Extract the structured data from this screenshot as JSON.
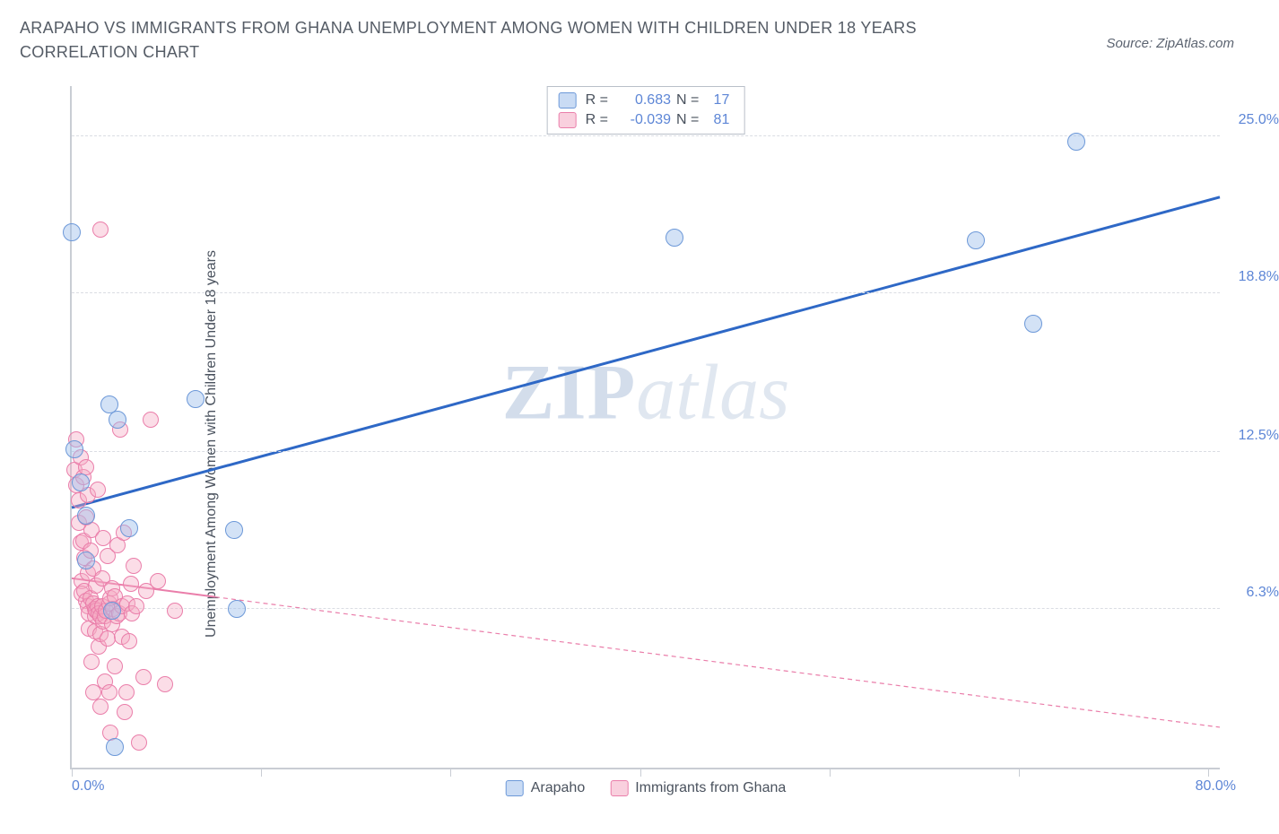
{
  "title": "ARAPAHO VS IMMIGRANTS FROM GHANA UNEMPLOYMENT AMONG WOMEN WITH CHILDREN UNDER 18 YEARS CORRELATION CHART",
  "source_label": "Source: ZipAtlas.com",
  "watermark_a": "ZIP",
  "watermark_b": "atlas",
  "y_axis_label": "Unemployment Among Women with Children Under 18 years",
  "chart": {
    "type": "scatter",
    "xlim": [
      0,
      80
    ],
    "ylim": [
      0,
      27
    ],
    "x_min_label": "0.0%",
    "x_max_label": "80.0%",
    "x_tick_positions_pct": [
      0,
      16.5,
      33,
      49.5,
      66,
      82.5,
      99
    ],
    "y_ticks": [
      {
        "value": 25.0,
        "label": "25.0%"
      },
      {
        "value": 18.8,
        "label": "18.8%"
      },
      {
        "value": 12.5,
        "label": "12.5%"
      },
      {
        "value": 6.3,
        "label": "6.3%"
      }
    ],
    "gridline_color": "#dadde3",
    "axis_color": "#c9cdd4",
    "background_color": "#ffffff",
    "y_tick_label_color": "#5d86d6",
    "series": {
      "arapaho": {
        "label": "Arapaho",
        "R_label": "R =",
        "R_value": "0.683",
        "N_label": "N =",
        "N_value": "17",
        "color_fill": "rgba(157,190,235,0.45)",
        "color_stroke": "#6c98d8",
        "trend_color": "#2e68c6",
        "trend_width": 3,
        "trend_dash": "none",
        "trend_y_at_x0": 10.3,
        "trend_y_at_xmax": 22.6,
        "points": [
          {
            "x": 0.0,
            "y": 21.2
          },
          {
            "x": 0.2,
            "y": 12.6
          },
          {
            "x": 0.6,
            "y": 11.3
          },
          {
            "x": 1.0,
            "y": 10.0
          },
          {
            "x": 1.0,
            "y": 8.2
          },
          {
            "x": 2.6,
            "y": 14.4
          },
          {
            "x": 3.2,
            "y": 13.8
          },
          {
            "x": 2.8,
            "y": 6.2
          },
          {
            "x": 4.0,
            "y": 9.5
          },
          {
            "x": 3.0,
            "y": 0.8
          },
          {
            "x": 8.6,
            "y": 14.6
          },
          {
            "x": 11.5,
            "y": 6.3
          },
          {
            "x": 11.3,
            "y": 9.4
          },
          {
            "x": 42.0,
            "y": 21.0
          },
          {
            "x": 63.0,
            "y": 20.9
          },
          {
            "x": 67.0,
            "y": 17.6
          },
          {
            "x": 70.0,
            "y": 24.8
          }
        ]
      },
      "ghana": {
        "label": "Immigrants from Ghana",
        "R_label": "R =",
        "R_value": "-0.039",
        "N_label": "N =",
        "N_value": "81",
        "color_fill": "rgba(244,170,195,0.40)",
        "color_stroke": "#ea7eaa",
        "trend_color": "#ea7eaa",
        "trend_width": 2,
        "trend_solid_until_x": 10,
        "trend_y_at_x0": 7.5,
        "trend_y_at_xmax": 1.6,
        "points": [
          {
            "x": 0.2,
            "y": 11.8
          },
          {
            "x": 0.3,
            "y": 11.2
          },
          {
            "x": 0.3,
            "y": 13.0
          },
          {
            "x": 0.5,
            "y": 10.6
          },
          {
            "x": 0.5,
            "y": 9.7
          },
          {
            "x": 0.6,
            "y": 12.3
          },
          {
            "x": 0.6,
            "y": 8.9
          },
          {
            "x": 0.7,
            "y": 7.4
          },
          {
            "x": 0.7,
            "y": 6.9
          },
          {
            "x": 0.8,
            "y": 11.5
          },
          {
            "x": 0.8,
            "y": 9.0
          },
          {
            "x": 0.9,
            "y": 8.3
          },
          {
            "x": 0.9,
            "y": 7.0
          },
          {
            "x": 1.0,
            "y": 6.6
          },
          {
            "x": 1.0,
            "y": 9.9
          },
          {
            "x": 1.0,
            "y": 11.9
          },
          {
            "x": 1.1,
            "y": 6.4
          },
          {
            "x": 1.1,
            "y": 7.7
          },
          {
            "x": 1.1,
            "y": 10.8
          },
          {
            "x": 1.2,
            "y": 5.5
          },
          {
            "x": 1.2,
            "y": 6.1
          },
          {
            "x": 1.3,
            "y": 8.6
          },
          {
            "x": 1.3,
            "y": 6.7
          },
          {
            "x": 1.4,
            "y": 4.2
          },
          {
            "x": 1.4,
            "y": 9.4
          },
          {
            "x": 1.5,
            "y": 3.0
          },
          {
            "x": 1.5,
            "y": 6.5
          },
          {
            "x": 1.5,
            "y": 7.9
          },
          {
            "x": 1.6,
            "y": 6.3
          },
          {
            "x": 1.6,
            "y": 6.0
          },
          {
            "x": 1.6,
            "y": 5.4
          },
          {
            "x": 1.7,
            "y": 6.2
          },
          {
            "x": 1.7,
            "y": 7.2
          },
          {
            "x": 1.8,
            "y": 11.0
          },
          {
            "x": 1.8,
            "y": 6.4
          },
          {
            "x": 1.9,
            "y": 4.8
          },
          {
            "x": 1.9,
            "y": 6.1
          },
          {
            "x": 2.0,
            "y": 6.0
          },
          {
            "x": 2.0,
            "y": 5.3
          },
          {
            "x": 2.0,
            "y": 2.4
          },
          {
            "x": 2.1,
            "y": 7.5
          },
          {
            "x": 2.1,
            "y": 6.4
          },
          {
            "x": 2.2,
            "y": 5.8
          },
          {
            "x": 2.2,
            "y": 9.1
          },
          {
            "x": 2.3,
            "y": 3.4
          },
          {
            "x": 2.3,
            "y": 6.0
          },
          {
            "x": 2.4,
            "y": 6.2
          },
          {
            "x": 2.5,
            "y": 5.1
          },
          {
            "x": 2.5,
            "y": 8.4
          },
          {
            "x": 2.6,
            "y": 6.5
          },
          {
            "x": 2.6,
            "y": 3.0
          },
          {
            "x": 2.7,
            "y": 1.4
          },
          {
            "x": 2.7,
            "y": 6.7
          },
          {
            "x": 2.8,
            "y": 7.1
          },
          {
            "x": 2.8,
            "y": 5.7
          },
          {
            "x": 2.9,
            "y": 6.3
          },
          {
            "x": 3.0,
            "y": 4.0
          },
          {
            "x": 3.0,
            "y": 6.8
          },
          {
            "x": 3.1,
            "y": 6.0
          },
          {
            "x": 3.2,
            "y": 8.8
          },
          {
            "x": 3.3,
            "y": 6.1
          },
          {
            "x": 3.4,
            "y": 13.4
          },
          {
            "x": 3.5,
            "y": 5.2
          },
          {
            "x": 3.5,
            "y": 6.4
          },
          {
            "x": 3.6,
            "y": 9.3
          },
          {
            "x": 3.7,
            "y": 2.2
          },
          {
            "x": 3.8,
            "y": 3.0
          },
          {
            "x": 3.9,
            "y": 6.5
          },
          {
            "x": 4.0,
            "y": 5.0
          },
          {
            "x": 4.1,
            "y": 7.3
          },
          {
            "x": 4.2,
            "y": 6.1
          },
          {
            "x": 4.3,
            "y": 8.0
          },
          {
            "x": 4.5,
            "y": 6.4
          },
          {
            "x": 4.7,
            "y": 1.0
          },
          {
            "x": 5.0,
            "y": 3.6
          },
          {
            "x": 5.2,
            "y": 7.0
          },
          {
            "x": 5.5,
            "y": 13.8
          },
          {
            "x": 6.0,
            "y": 7.4
          },
          {
            "x": 6.5,
            "y": 3.3
          },
          {
            "x": 7.2,
            "y": 6.2
          },
          {
            "x": 2.0,
            "y": 21.3
          }
        ]
      }
    }
  }
}
